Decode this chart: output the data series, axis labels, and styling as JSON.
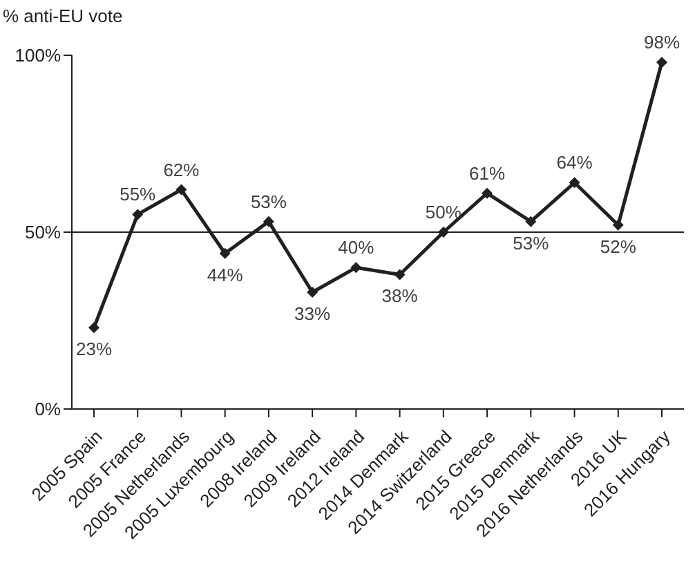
{
  "chart_data": {
    "type": "line",
    "ylabel": "% anti-EU vote",
    "categories": [
      "2005 Spain",
      "2005 France",
      "2005 Netherlands",
      "2005 Luxembourg",
      "2008 Ireland",
      "2009 Ireland",
      "2012 Ireland",
      "2014 Denmark",
      "2014 Switzerland",
      "2015 Greece",
      "2015 Denmark",
      "2016 Netherlands",
      "2016 UK",
      "2016 Hungary"
    ],
    "series": [
      {
        "color": "#231f20",
        "values": [
          23,
          55,
          62,
          44,
          53,
          33,
          40,
          38,
          50,
          61,
          53,
          64,
          52,
          98
        ],
        "value_labels": [
          "23%",
          "55%",
          "62%",
          "44%",
          "53%",
          "33%",
          "40%",
          "38%",
          "50%",
          "61%",
          "53%",
          "64%",
          "52%",
          "98%"
        ]
      }
    ],
    "ylim": [
      0,
      100
    ],
    "yticks": [
      {
        "value": 0,
        "label": "0%"
      },
      {
        "value": 50,
        "label": "50%"
      },
      {
        "value": 100,
        "label": "100%"
      }
    ],
    "ref_lines": [
      {
        "axis": "y",
        "value": 50,
        "color": "#231f20"
      }
    ],
    "grid": false,
    "legend": false,
    "marker": "diamond",
    "line_style": "solid"
  }
}
